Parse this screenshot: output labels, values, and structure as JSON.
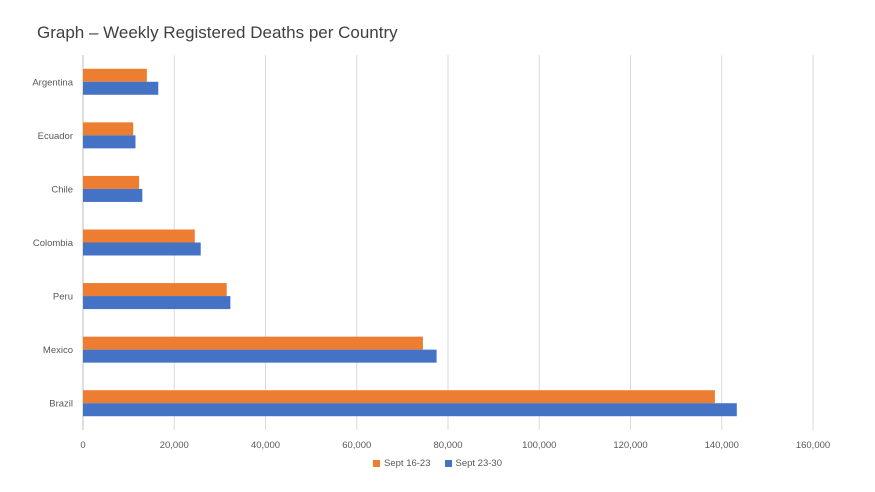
{
  "chart_data": {
    "type": "bar",
    "orientation": "horizontal",
    "title": "Graph – Weekly Registered Deaths per Country",
    "categories": [
      "Argentina",
      "Ecuador",
      "Chile",
      "Colombia",
      "Peru",
      "Mexico",
      "Brazil"
    ],
    "series": [
      {
        "name": "Sept 16-23",
        "color": "#ED7D31",
        "values": [
          14000,
          11000,
          12300,
          24500,
          31500,
          74500,
          138500
        ]
      },
      {
        "name": "Sept 23-30",
        "color": "#4472C4",
        "values": [
          16500,
          11500,
          13000,
          25800,
          32300,
          77500,
          143300
        ]
      }
    ],
    "xlim": [
      0,
      160000
    ],
    "xticks": [
      0,
      20000,
      40000,
      60000,
      80000,
      100000,
      120000,
      140000,
      160000
    ],
    "xtick_labels": [
      "0",
      "20,000",
      "40,000",
      "60,000",
      "80,000",
      "100,000",
      "120,000",
      "140,000",
      "160,000"
    ],
    "grid": true,
    "legend_position": "bottom"
  }
}
